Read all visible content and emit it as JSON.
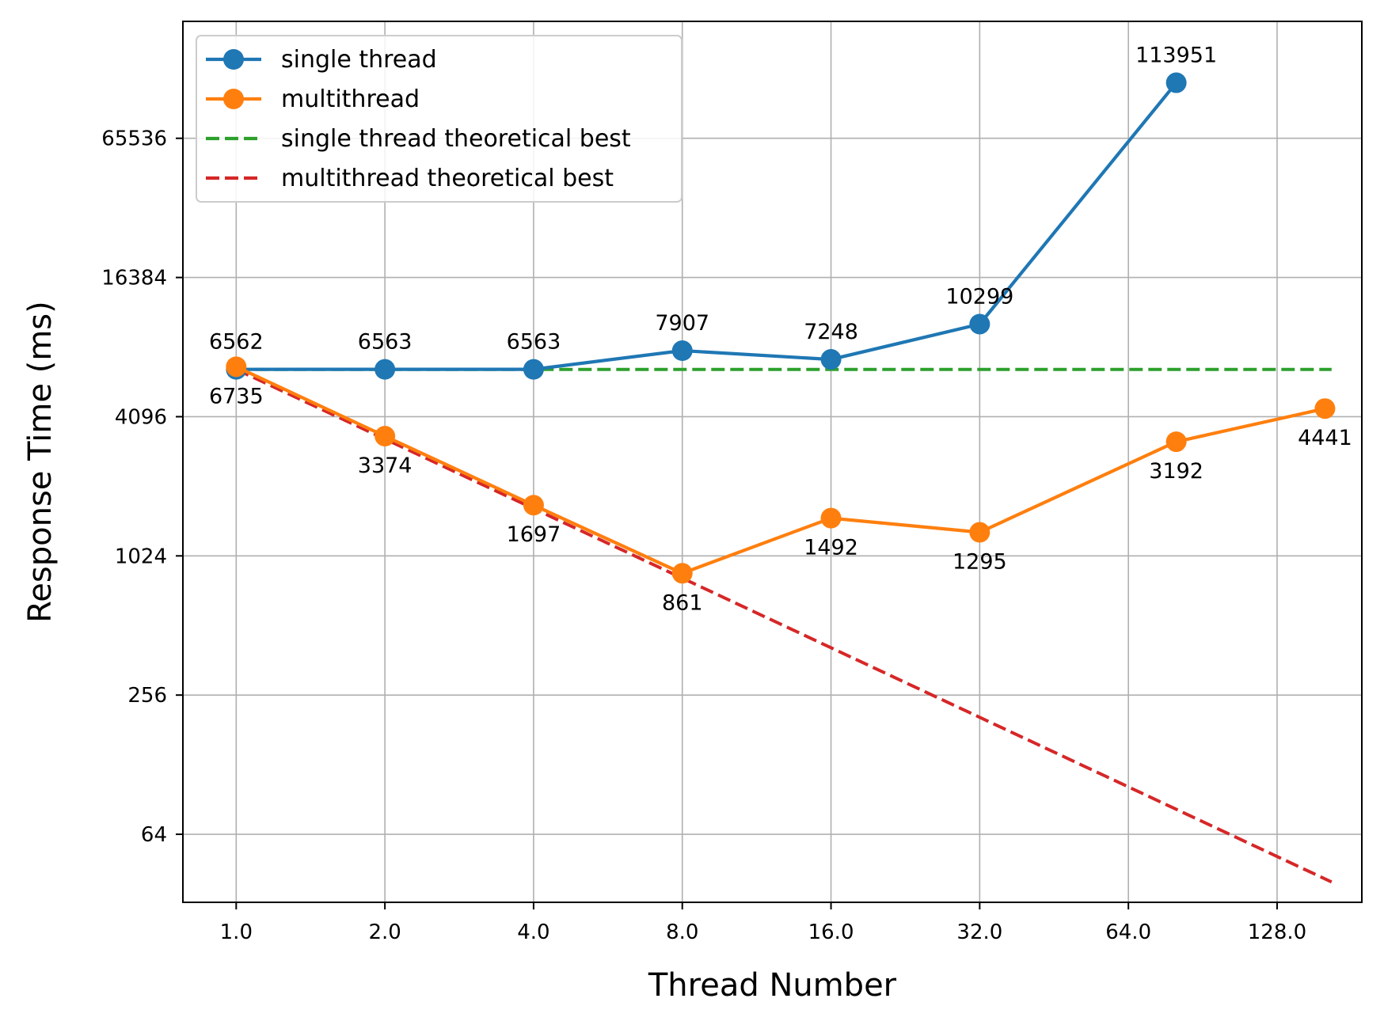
{
  "chart_data": {
    "type": "line",
    "xlabel": "Thread Number",
    "ylabel": "Response Time (ms)",
    "xscale": "log2",
    "yscale": "log2",
    "xlim": [
      0.78,
      190
    ],
    "ylim": [
      32.5,
      210000
    ],
    "x_ticks": [
      1,
      2,
      4,
      8,
      16,
      32,
      64,
      128
    ],
    "x_tick_labels": [
      "1.0",
      "2.0",
      "4.0",
      "8.0",
      "16.0",
      "32.0",
      "64.0",
      "128.0"
    ],
    "y_ticks": [
      64,
      256,
      1024,
      4096,
      16384,
      65536
    ],
    "y_tick_labels": [
      "64",
      "256",
      "1024",
      "4096",
      "16384",
      "65536"
    ],
    "grid": true,
    "legend_position": "top-left",
    "series": [
      {
        "name": "single thread",
        "color": "#1f77b4",
        "style": "solid",
        "marker": "circle",
        "x": [
          1,
          2,
          4,
          8,
          16,
          32,
          80
        ],
        "y": [
          6562,
          6563,
          6563,
          7907,
          7248,
          10299,
          113951
        ],
        "labels": [
          "6562",
          "6563",
          "6563",
          "7907",
          "7248",
          "10299",
          "113951"
        ],
        "label_position": "above"
      },
      {
        "name": "multithread",
        "color": "#ff7f0e",
        "style": "solid",
        "marker": "circle",
        "x": [
          1,
          2,
          4,
          8,
          16,
          32,
          80,
          160
        ],
        "y": [
          6735,
          3374,
          1697,
          861,
          1492,
          1295,
          3192,
          4441
        ],
        "labels": [
          "6735",
          "3374",
          "1697",
          "861",
          "1492",
          "1295",
          "3192",
          "4441"
        ],
        "label_position": "below"
      },
      {
        "name": "single thread theoretical best",
        "color": "#2ca02c",
        "style": "dashed",
        "marker": "none",
        "x": [
          1,
          165
        ],
        "y": [
          6562,
          6562
        ]
      },
      {
        "name": "multithread theoretical best",
        "color": "#d62728",
        "style": "dashed",
        "marker": "none",
        "x": [
          1,
          165
        ],
        "y": [
          6562,
          39.8
        ]
      }
    ]
  }
}
